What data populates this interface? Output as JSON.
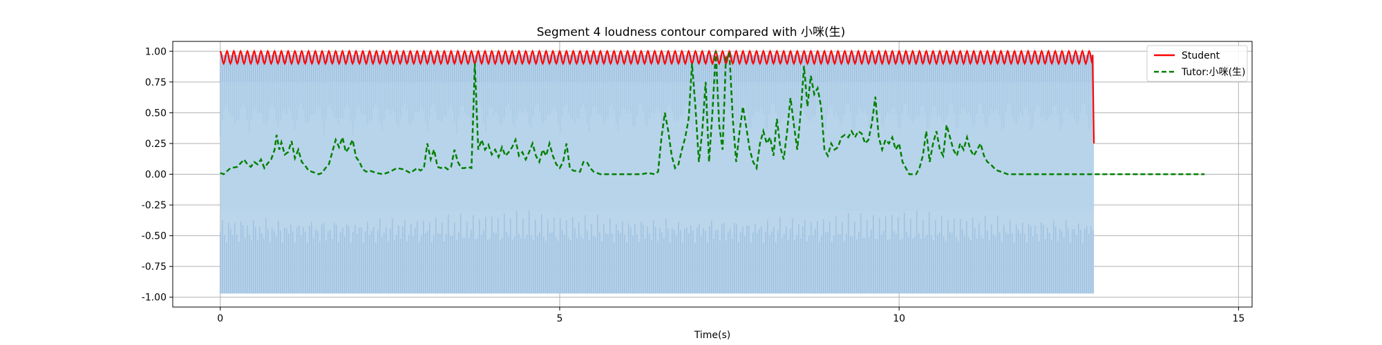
{
  "chart_data": {
    "type": "line",
    "title": "Segment 4 loudness contour compared with 小咪(生)",
    "xlabel": "Time(s)",
    "ylabel": "",
    "xlim": [
      -0.7,
      15.2
    ],
    "ylim": [
      -1.08,
      1.08
    ],
    "x_ticks": [
      0,
      5,
      10,
      15
    ],
    "x_tick_labels": [
      "0",
      "5",
      "10",
      "15"
    ],
    "y_ticks": [
      1.0,
      0.75,
      0.5,
      0.25,
      0.0,
      -0.25,
      -0.5,
      -0.75,
      -1.0
    ],
    "y_tick_labels": [
      "1.00",
      "0.75",
      "0.50",
      "0.25",
      "0.00",
      "-0.25",
      "-0.50",
      "-0.75",
      "-1.00"
    ],
    "grid": true,
    "legend_position": "top-right",
    "waveform": {
      "x_start": 0,
      "x_end": 12.87,
      "amplitude": 0.97,
      "color": "#b7d3ea"
    },
    "series": [
      {
        "name": "Student",
        "color": "#ff0000",
        "style": "solid",
        "oscillation": {
          "x_start": 0,
          "x_end": 12.85,
          "period": 0.1,
          "min": 0.9,
          "max": 1.0
        },
        "tail": [
          [
            12.85,
            0.97
          ],
          [
            12.87,
            0.25
          ]
        ]
      },
      {
        "name": "Tutor:小咪(生)",
        "color": "#008000",
        "style": "dashed",
        "points": [
          [
            0.0,
            0.01
          ],
          [
            0.05,
            0.0
          ],
          [
            0.15,
            0.05
          ],
          [
            0.25,
            0.06
          ],
          [
            0.3,
            0.09
          ],
          [
            0.35,
            0.12
          ],
          [
            0.4,
            0.08
          ],
          [
            0.45,
            0.06
          ],
          [
            0.5,
            0.1
          ],
          [
            0.55,
            0.08
          ],
          [
            0.6,
            0.12
          ],
          [
            0.65,
            0.05
          ],
          [
            0.7,
            0.09
          ],
          [
            0.75,
            0.12
          ],
          [
            0.8,
            0.2
          ],
          [
            0.83,
            0.32
          ],
          [
            0.87,
            0.2
          ],
          [
            0.9,
            0.26
          ],
          [
            0.95,
            0.16
          ],
          [
            1.0,
            0.18
          ],
          [
            1.05,
            0.27
          ],
          [
            1.1,
            0.13
          ],
          [
            1.15,
            0.2
          ],
          [
            1.2,
            0.1
          ],
          [
            1.25,
            0.07
          ],
          [
            1.3,
            0.03
          ],
          [
            1.35,
            0.02
          ],
          [
            1.4,
            0.01
          ],
          [
            1.45,
            0.0
          ],
          [
            1.5,
            0.01
          ],
          [
            1.55,
            0.05
          ],
          [
            1.6,
            0.08
          ],
          [
            1.65,
            0.18
          ],
          [
            1.7,
            0.28
          ],
          [
            1.75,
            0.22
          ],
          [
            1.8,
            0.3
          ],
          [
            1.85,
            0.18
          ],
          [
            1.9,
            0.22
          ],
          [
            1.95,
            0.28
          ],
          [
            2.0,
            0.14
          ],
          [
            2.05,
            0.1
          ],
          [
            2.1,
            0.04
          ],
          [
            2.15,
            0.02
          ],
          [
            2.2,
            0.03
          ],
          [
            2.3,
            0.01
          ],
          [
            2.4,
            0.0
          ],
          [
            2.5,
            0.02
          ],
          [
            2.6,
            0.05
          ],
          [
            2.7,
            0.04
          ],
          [
            2.8,
            0.01
          ],
          [
            2.9,
            0.05
          ],
          [
            2.95,
            0.03
          ],
          [
            3.0,
            0.05
          ],
          [
            3.05,
            0.25
          ],
          [
            3.1,
            0.12
          ],
          [
            3.15,
            0.2
          ],
          [
            3.2,
            0.06
          ],
          [
            3.25,
            0.05
          ],
          [
            3.3,
            0.06
          ],
          [
            3.35,
            0.04
          ],
          [
            3.4,
            0.06
          ],
          [
            3.45,
            0.2
          ],
          [
            3.5,
            0.1
          ],
          [
            3.55,
            0.05
          ],
          [
            3.6,
            0.05
          ],
          [
            3.65,
            0.06
          ],
          [
            3.7,
            0.05
          ],
          [
            3.75,
            0.9
          ],
          [
            3.8,
            0.2
          ],
          [
            3.85,
            0.28
          ],
          [
            3.9,
            0.2
          ],
          [
            3.95,
            0.24
          ],
          [
            4.0,
            0.16
          ],
          [
            4.05,
            0.2
          ],
          [
            4.1,
            0.14
          ],
          [
            4.15,
            0.22
          ],
          [
            4.2,
            0.15
          ],
          [
            4.25,
            0.18
          ],
          [
            4.3,
            0.22
          ],
          [
            4.35,
            0.28
          ],
          [
            4.4,
            0.15
          ],
          [
            4.45,
            0.18
          ],
          [
            4.5,
            0.12
          ],
          [
            4.55,
            0.18
          ],
          [
            4.6,
            0.25
          ],
          [
            4.65,
            0.15
          ],
          [
            4.7,
            0.1
          ],
          [
            4.75,
            0.2
          ],
          [
            4.8,
            0.15
          ],
          [
            4.85,
            0.25
          ],
          [
            4.9,
            0.15
          ],
          [
            4.95,
            0.08
          ],
          [
            5.0,
            0.05
          ],
          [
            5.05,
            0.1
          ],
          [
            5.1,
            0.25
          ],
          [
            5.15,
            0.05
          ],
          [
            5.2,
            0.03
          ],
          [
            5.3,
            0.02
          ],
          [
            5.35,
            0.1
          ],
          [
            5.4,
            0.1
          ],
          [
            5.45,
            0.05
          ],
          [
            5.5,
            0.02
          ],
          [
            5.6,
            0.0
          ],
          [
            5.8,
            0.0
          ],
          [
            6.0,
            0.0
          ],
          [
            6.2,
            0.0
          ],
          [
            6.3,
            0.01
          ],
          [
            6.4,
            0.0
          ],
          [
            6.45,
            0.02
          ],
          [
            6.5,
            0.3
          ],
          [
            6.55,
            0.5
          ],
          [
            6.6,
            0.35
          ],
          [
            6.65,
            0.15
          ],
          [
            6.7,
            0.05
          ],
          [
            6.75,
            0.08
          ],
          [
            6.8,
            0.2
          ],
          [
            6.85,
            0.3
          ],
          [
            6.9,
            0.45
          ],
          [
            6.95,
            0.9
          ],
          [
            7.0,
            0.55
          ],
          [
            7.05,
            0.1
          ],
          [
            7.1,
            0.35
          ],
          [
            7.15,
            0.75
          ],
          [
            7.2,
            0.1
          ],
          [
            7.25,
            0.5
          ],
          [
            7.3,
            1.0
          ],
          [
            7.35,
            0.4
          ],
          [
            7.4,
            0.2
          ],
          [
            7.45,
            0.95
          ],
          [
            7.5,
            0.98
          ],
          [
            7.55,
            0.45
          ],
          [
            7.6,
            0.1
          ],
          [
            7.65,
            0.35
          ],
          [
            7.7,
            0.55
          ],
          [
            7.75,
            0.38
          ],
          [
            7.8,
            0.2
          ],
          [
            7.85,
            0.1
          ],
          [
            7.9,
            0.05
          ],
          [
            7.95,
            0.25
          ],
          [
            8.0,
            0.35
          ],
          [
            8.05,
            0.25
          ],
          [
            8.1,
            0.3
          ],
          [
            8.15,
            0.15
          ],
          [
            8.2,
            0.45
          ],
          [
            8.25,
            0.22
          ],
          [
            8.3,
            0.12
          ],
          [
            8.35,
            0.35
          ],
          [
            8.4,
            0.62
          ],
          [
            8.45,
            0.4
          ],
          [
            8.5,
            0.2
          ],
          [
            8.55,
            0.5
          ],
          [
            8.6,
            0.88
          ],
          [
            8.65,
            0.55
          ],
          [
            8.7,
            0.8
          ],
          [
            8.75,
            0.65
          ],
          [
            8.8,
            0.7
          ],
          [
            8.85,
            0.55
          ],
          [
            8.9,
            0.2
          ],
          [
            8.95,
            0.15
          ],
          [
            9.0,
            0.25
          ],
          [
            9.05,
            0.2
          ],
          [
            9.1,
            0.22
          ],
          [
            9.15,
            0.3
          ],
          [
            9.2,
            0.32
          ],
          [
            9.25,
            0.3
          ],
          [
            9.3,
            0.35
          ],
          [
            9.35,
            0.3
          ],
          [
            9.4,
            0.35
          ],
          [
            9.45,
            0.33
          ],
          [
            9.5,
            0.25
          ],
          [
            9.55,
            0.28
          ],
          [
            9.6,
            0.42
          ],
          [
            9.65,
            0.63
          ],
          [
            9.7,
            0.3
          ],
          [
            9.75,
            0.2
          ],
          [
            9.8,
            0.28
          ],
          [
            9.85,
            0.25
          ],
          [
            9.9,
            0.3
          ],
          [
            9.95,
            0.2
          ],
          [
            10.0,
            0.25
          ],
          [
            10.05,
            0.1
          ],
          [
            10.1,
            0.05
          ],
          [
            10.15,
            0.0
          ],
          [
            10.2,
            0.0
          ],
          [
            10.25,
            0.0
          ],
          [
            10.3,
            0.05
          ],
          [
            10.35,
            0.15
          ],
          [
            10.4,
            0.35
          ],
          [
            10.45,
            0.1
          ],
          [
            10.5,
            0.25
          ],
          [
            10.55,
            0.35
          ],
          [
            10.6,
            0.2
          ],
          [
            10.65,
            0.15
          ],
          [
            10.7,
            0.4
          ],
          [
            10.75,
            0.3
          ],
          [
            10.8,
            0.2
          ],
          [
            10.85,
            0.15
          ],
          [
            10.9,
            0.25
          ],
          [
            10.95,
            0.2
          ],
          [
            11.0,
            0.3
          ],
          [
            11.05,
            0.2
          ],
          [
            11.1,
            0.15
          ],
          [
            11.15,
            0.2
          ],
          [
            11.2,
            0.25
          ],
          [
            11.25,
            0.15
          ],
          [
            11.3,
            0.1
          ],
          [
            11.35,
            0.08
          ],
          [
            11.4,
            0.05
          ],
          [
            11.45,
            0.03
          ],
          [
            11.5,
            0.02
          ],
          [
            11.6,
            0.0
          ],
          [
            11.8,
            0.0
          ],
          [
            12.0,
            0.0
          ],
          [
            12.2,
            0.0
          ],
          [
            12.4,
            0.0
          ],
          [
            12.6,
            0.0
          ],
          [
            12.8,
            0.0
          ],
          [
            13.0,
            0.0
          ],
          [
            13.2,
            0.0
          ],
          [
            13.4,
            0.0
          ],
          [
            13.6,
            0.0
          ],
          [
            13.8,
            0.0
          ],
          [
            14.0,
            0.0
          ],
          [
            14.2,
            0.0
          ],
          [
            14.4,
            0.0
          ],
          [
            14.5,
            0.0
          ]
        ]
      }
    ]
  }
}
